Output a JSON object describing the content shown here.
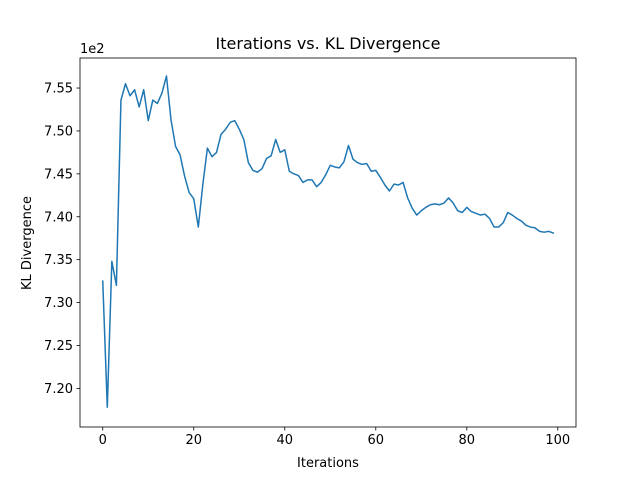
{
  "chart_data": {
    "type": "line",
    "title": "Iterations vs. KL Divergence",
    "xlabel": "Iterations",
    "ylabel": "KL Divergence",
    "y_offset_label": "1e2",
    "xlim": [
      -5,
      104
    ],
    "ylim": [
      7.155,
      7.585
    ],
    "xticks": [
      0,
      20,
      40,
      60,
      80,
      100
    ],
    "xtick_labels": [
      "0",
      "20",
      "40",
      "60",
      "80",
      "100"
    ],
    "yticks": [
      7.2,
      7.25,
      7.3,
      7.35,
      7.4,
      7.45,
      7.5,
      7.55
    ],
    "ytick_labels": [
      "7.20",
      "7.25",
      "7.30",
      "7.35",
      "7.40",
      "7.45",
      "7.50",
      "7.55"
    ],
    "series": [
      {
        "name": "KL Divergence",
        "color": "#1f77b4",
        "x": [
          0,
          1,
          2,
          3,
          4,
          5,
          6,
          7,
          8,
          9,
          10,
          11,
          12,
          13,
          14,
          15,
          16,
          17,
          18,
          19,
          20,
          21,
          22,
          23,
          24,
          25,
          26,
          27,
          28,
          29,
          30,
          31,
          32,
          33,
          34,
          35,
          36,
          37,
          38,
          39,
          40,
          41,
          42,
          43,
          44,
          45,
          46,
          47,
          48,
          49,
          50,
          51,
          52,
          53,
          54,
          55,
          56,
          57,
          58,
          59,
          60,
          61,
          62,
          63,
          64,
          65,
          66,
          67,
          68,
          69,
          70,
          71,
          72,
          73,
          74,
          75,
          76,
          77,
          78,
          79,
          80,
          81,
          82,
          83,
          84,
          85,
          86,
          87,
          88,
          89,
          90,
          91,
          92,
          93,
          94,
          95,
          96,
          97,
          98,
          99
        ],
        "values": [
          7.325,
          7.178,
          7.348,
          7.32,
          7.536,
          7.555,
          7.541,
          7.548,
          7.528,
          7.548,
          7.512,
          7.536,
          7.532,
          7.544,
          7.564,
          7.513,
          7.482,
          7.472,
          7.447,
          7.428,
          7.421,
          7.388,
          7.438,
          7.48,
          7.47,
          7.475,
          7.496,
          7.502,
          7.51,
          7.512,
          7.502,
          7.49,
          7.463,
          7.454,
          7.452,
          7.456,
          7.468,
          7.471,
          7.49,
          7.475,
          7.478,
          7.453,
          7.45,
          7.448,
          7.44,
          7.443,
          7.443,
          7.435,
          7.44,
          7.449,
          7.46,
          7.458,
          7.457,
          7.464,
          7.483,
          7.467,
          7.463,
          7.461,
          7.462,
          7.453,
          7.454,
          7.446,
          7.437,
          7.43,
          7.438,
          7.437,
          7.44,
          7.422,
          7.41,
          7.402,
          7.407,
          7.411,
          7.414,
          7.415,
          7.414,
          7.416,
          7.422,
          7.416,
          7.407,
          7.405,
          7.411,
          7.406,
          7.404,
          7.402,
          7.403,
          7.398,
          7.388,
          7.388,
          7.393,
          7.405,
          7.402,
          7.398,
          7.395,
          7.39,
          7.388,
          7.387,
          7.383,
          7.382,
          7.383,
          7.381
        ]
      }
    ],
    "grid": false
  }
}
